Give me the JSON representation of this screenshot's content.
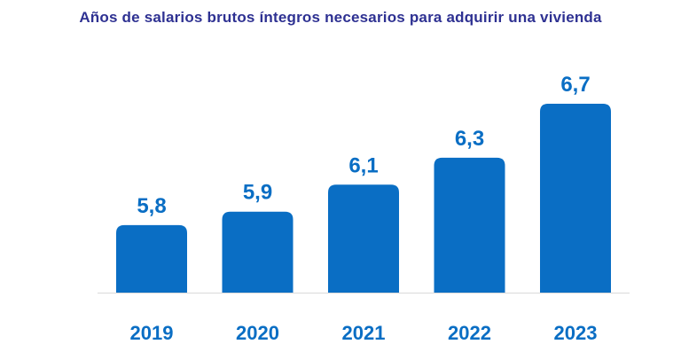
{
  "chart_data": {
    "type": "bar",
    "title": "Años de salarios brutos íntegros necesarios para adquirir una vivienda",
    "categories": [
      "2019",
      "2020",
      "2021",
      "2022",
      "2023"
    ],
    "values": [
      5.8,
      5.9,
      6.1,
      6.3,
      6.7
    ],
    "value_labels": [
      "5,8",
      "5,9",
      "6,1",
      "6,3",
      "6,7"
    ],
    "xlabel": "",
    "ylabel": "",
    "ylim": [
      5.3,
      6.7
    ],
    "grid": false,
    "legend": "none",
    "colors": {
      "bar": "#0A6EC4",
      "title": "#2E3192",
      "labels": "#0A6EC4"
    }
  }
}
